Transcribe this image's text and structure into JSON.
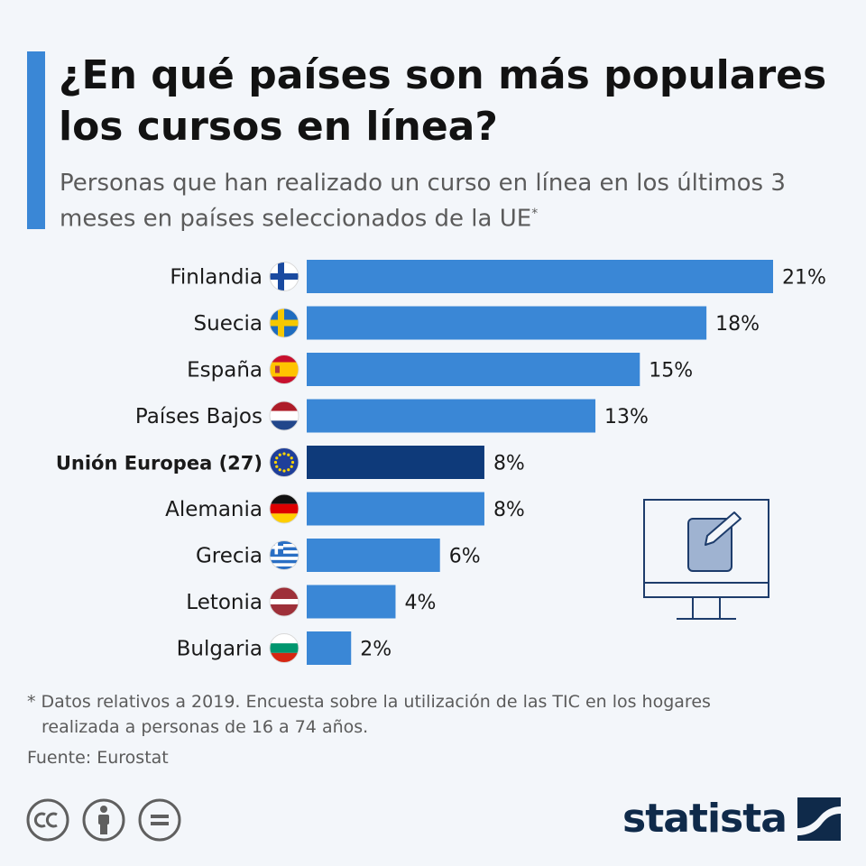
{
  "title": "¿En qué países son más populares los cursos en línea?",
  "subtitle": "Personas que han realizado un curso en línea en los últimos 3 meses en países seleccionados de la UE",
  "subtitle_marker": "*",
  "footnote": {
    "line1": "* Datos relativos a 2019. Encuesta sobre la utilización de las TIC en los hogares",
    "line2": "realizada a personas de 16 a 74 años."
  },
  "source": "Fuente: Eurostat",
  "brand": "statista",
  "colors": {
    "bar": "#3a87d6",
    "highlight_bar": "#0e3a7a",
    "accent": "#3a87d6",
    "text": "#1a1a1a"
  },
  "license_icons": [
    "cc-icon",
    "attribution-icon",
    "no-derivatives-icon"
  ],
  "illustration_icon": "computer-monitor-with-document-icon",
  "chart_data": {
    "type": "bar",
    "orientation": "horizontal",
    "unit": "%",
    "categories": [
      "Finlandia",
      "Suecia",
      "España",
      "Países Bajos",
      "Unión Europea (27)",
      "Alemania",
      "Grecia",
      "Letonia",
      "Bulgaria"
    ],
    "values": [
      21,
      18,
      15,
      13,
      8,
      8,
      6,
      4,
      2
    ],
    "value_labels": [
      "21%",
      "18%",
      "15%",
      "13%",
      "8%",
      "8%",
      "6%",
      "4%",
      "2%"
    ],
    "highlighted": [
      "Unión Europea (27)"
    ],
    "flag_icons": [
      "finland-flag-icon",
      "sweden-flag-icon",
      "spain-flag-icon",
      "netherlands-flag-icon",
      "eu-flag-icon",
      "germany-flag-icon",
      "greece-flag-icon",
      "latvia-flag-icon",
      "bulgaria-flag-icon"
    ],
    "xlim": [
      0,
      21
    ],
    "grid": false,
    "legend": "none"
  }
}
